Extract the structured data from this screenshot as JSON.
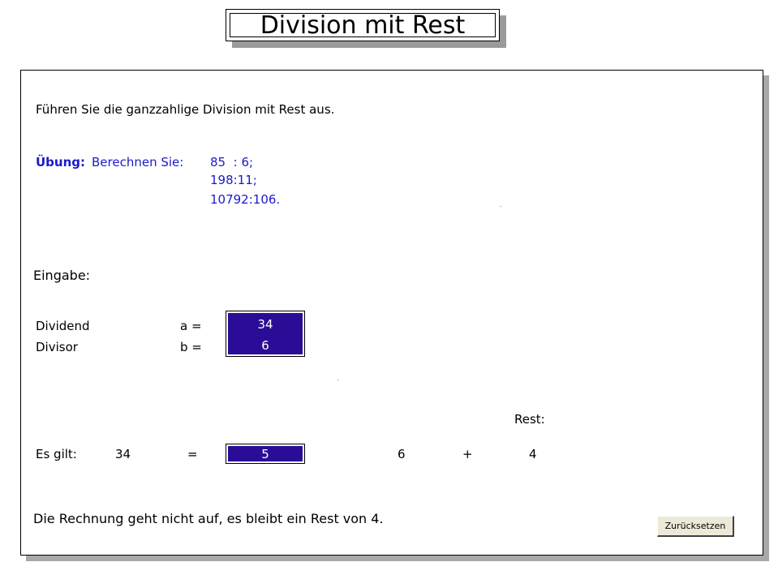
{
  "title": "Division mit Rest",
  "instruction": "Führen Sie die ganzzahlige Division mit Rest aus.",
  "exercise": {
    "label": "Übung:",
    "prompt": "Berechnen Sie:",
    "tasks": [
      "85  : 6;",
      "198:11;",
      "10792:106."
    ]
  },
  "input": {
    "heading": "Eingabe:",
    "dividend_label": "Dividend",
    "dividend_var": "a =",
    "dividend_value": "34",
    "divisor_label": "Divisor",
    "divisor_var": "b =",
    "divisor_value": "6"
  },
  "result": {
    "rest_heading": "Rest:",
    "label": "Es gilt:",
    "dividend": "34",
    "equals": "=",
    "quotient_value": "5",
    "divisor": "6",
    "plus": "+",
    "remainder": "4"
  },
  "message": "Die Rechnung geht nicht auf, es bleibt ein Rest von 4.",
  "reset_label": "Zurücksetzen",
  "colors": {
    "field_background": "#2a0c96",
    "field_text": "#ffffff",
    "exercise_text": "#1a1acc"
  }
}
